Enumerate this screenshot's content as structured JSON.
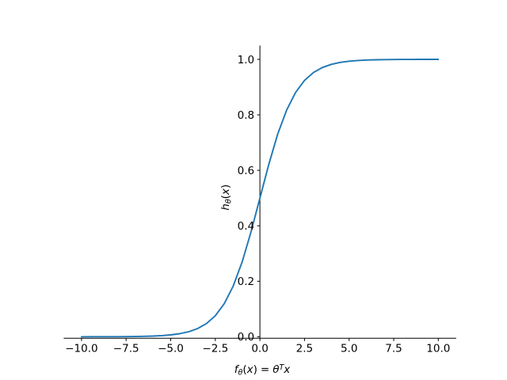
{
  "figure": {
    "background": "#ffffff",
    "title": ""
  },
  "chart_data": {
    "type": "line",
    "title": "",
    "xlabel": "fθ(x) = θᵀx",
    "ylabel": "hθ(x)",
    "xlabel_parts": {
      "f": "f",
      "f_sub": "θ",
      "open_paren": "(",
      "x_arg": "x",
      "close_paren": ")",
      "equals": "=",
      "theta": "θ",
      "transpose_sup": "T",
      "x_var": "x"
    },
    "ylabel_parts": {
      "h": "h",
      "h_sub": "θ",
      "open_paren": "(",
      "x_arg": "x",
      "close_paren": ")"
    },
    "xlim": [
      -11,
      11
    ],
    "ylim": [
      -0.0055,
      1.0499
    ],
    "grid": false,
    "legend": null,
    "axis_color": "#000000",
    "x_ticks": {
      "values": [
        -10,
        -7.5,
        -5,
        -2.5,
        0,
        2.5,
        5,
        7.5,
        10
      ],
      "labels": [
        "−10.0",
        "−7.5",
        "−5.0",
        "−2.5",
        "0.0",
        "2.5",
        "5.0",
        "7.5",
        "10.0"
      ]
    },
    "y_ticks": {
      "values": [
        0,
        0.2,
        0.4,
        0.6,
        0.8,
        1.0
      ],
      "labels": [
        "0.0",
        "0.2",
        "0.4",
        "0.6",
        "0.8",
        "1.0"
      ]
    },
    "series": [
      {
        "name": "sigmoid",
        "color": "#1f77b4",
        "line_width": 1.9,
        "points": [
          [
            -10.0,
            5e-05
          ],
          [
            -9.5,
            7e-05
          ],
          [
            -9.0,
            0.00012
          ],
          [
            -8.5,
            0.0002
          ],
          [
            -8.0,
            0.00034
          ],
          [
            -7.5,
            0.00055
          ],
          [
            -7.0,
            0.00091
          ],
          [
            -6.5,
            0.0015
          ],
          [
            -6.0,
            0.00247
          ],
          [
            -5.5,
            0.00407
          ],
          [
            -5.0,
            0.00669
          ],
          [
            -4.5,
            0.01099
          ],
          [
            -4.0,
            0.01799
          ],
          [
            -3.5,
            0.02931
          ],
          [
            -3.0,
            0.04743
          ],
          [
            -2.5,
            0.07586
          ],
          [
            -2.0,
            0.1192
          ],
          [
            -1.5,
            0.18243
          ],
          [
            -1.0,
            0.26894
          ],
          [
            -0.5,
            0.37754
          ],
          [
            0.0,
            0.5
          ],
          [
            0.5,
            0.62246
          ],
          [
            1.0,
            0.73106
          ],
          [
            1.5,
            0.81757
          ],
          [
            2.0,
            0.8808
          ],
          [
            2.5,
            0.92414
          ],
          [
            3.0,
            0.95257
          ],
          [
            3.5,
            0.97069
          ],
          [
            4.0,
            0.98201
          ],
          [
            4.5,
            0.98901
          ],
          [
            5.0,
            0.99331
          ],
          [
            5.5,
            0.99593
          ],
          [
            6.0,
            0.99753
          ],
          [
            6.5,
            0.9985
          ],
          [
            7.0,
            0.99909
          ],
          [
            7.5,
            0.99945
          ],
          [
            8.0,
            0.99966
          ],
          [
            8.5,
            0.9998
          ],
          [
            9.0,
            0.99988
          ],
          [
            9.5,
            0.99993
          ],
          [
            10.0,
            0.99995
          ]
        ]
      }
    ]
  }
}
